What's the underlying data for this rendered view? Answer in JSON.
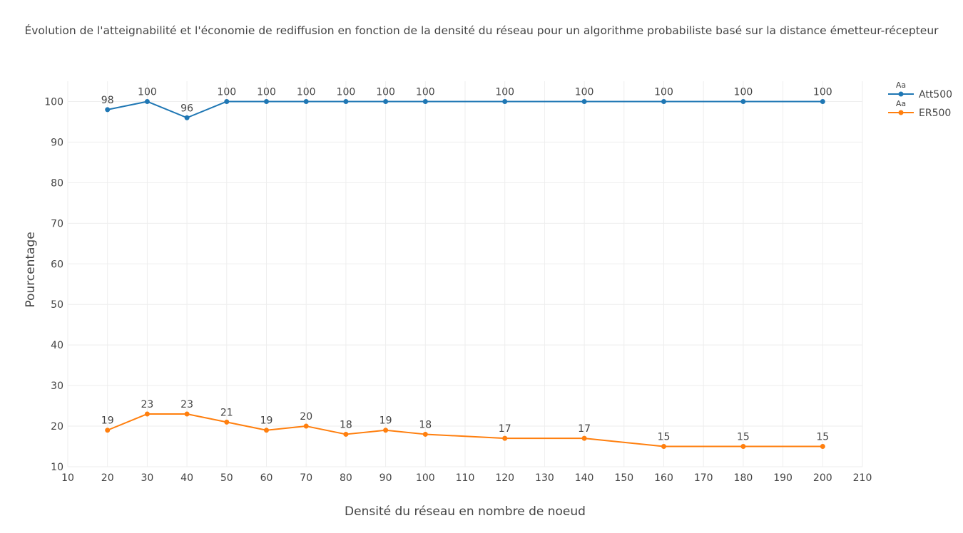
{
  "chart_data": {
    "type": "line",
    "title": "Évolution de l'atteignabilité et l'économie de rediffusion en fonction de la densité du réseau pour un algorithme probabiliste basé sur la distance émetteur-récepteur",
    "xlabel": "Densité du réseau en nombre de noeud",
    "ylabel": "Pourcentage",
    "xlim": [
      10,
      210
    ],
    "ylim": [
      10,
      105
    ],
    "x_ticks": [
      10,
      20,
      30,
      40,
      50,
      60,
      70,
      80,
      90,
      100,
      110,
      120,
      130,
      140,
      150,
      160,
      170,
      180,
      190,
      200,
      210
    ],
    "y_ticks": [
      10,
      20,
      30,
      40,
      50,
      60,
      70,
      80,
      90,
      100
    ],
    "grid": true,
    "legend_position": "top-right",
    "legend_marker_text": "Aa",
    "x": [
      20,
      30,
      40,
      50,
      60,
      70,
      80,
      90,
      100,
      120,
      140,
      160,
      180,
      200
    ],
    "series": [
      {
        "name": "Att500",
        "color": "#1f77b4",
        "values": [
          98,
          100,
          96,
          100,
          100,
          100,
          100,
          100,
          100,
          100,
          100,
          100,
          100,
          100
        ]
      },
      {
        "name": "ER500",
        "color": "#ff7f0e",
        "values": [
          19,
          23,
          23,
          21,
          19,
          20,
          18,
          19,
          18,
          17,
          17,
          15,
          15,
          15
        ]
      }
    ]
  }
}
